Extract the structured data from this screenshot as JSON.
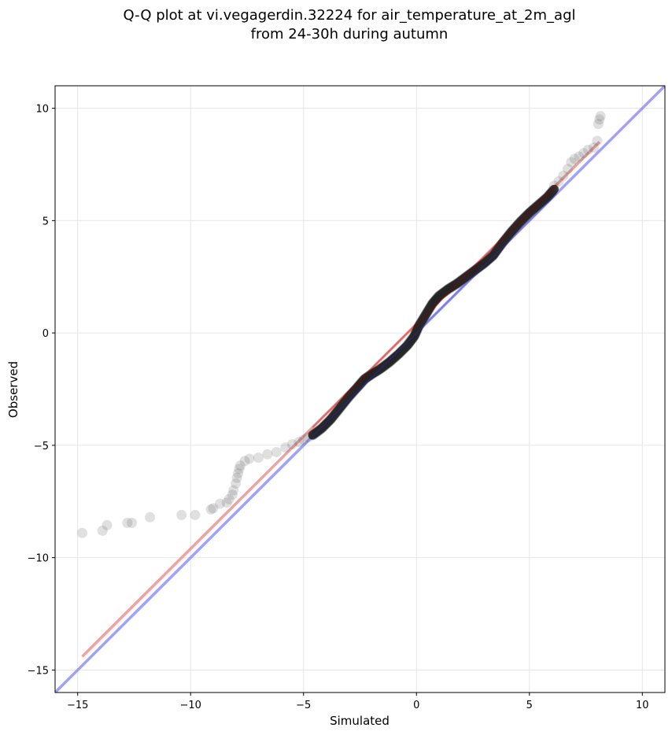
{
  "chart_data": {
    "type": "scatter",
    "title": "Q-Q plot at vi.vegagerdin.32224 for air_temperature_at_2m_agl",
    "subtitle": "from 24-30h during autumn",
    "xlabel": "Simulated",
    "ylabel": "Observed",
    "xlim": [
      -16,
      11
    ],
    "ylim": [
      -16,
      11
    ],
    "xticks": [
      -15,
      -10,
      -5,
      0,
      5,
      10
    ],
    "yticks": [
      -15,
      -10,
      -5,
      0,
      5,
      10
    ],
    "xtick_labels": [
      "−15",
      "−10",
      "−5",
      "0",
      "5",
      "10"
    ],
    "ytick_labels": [
      "−15",
      "−10",
      "−5",
      "0",
      "5",
      "10"
    ],
    "grid": true,
    "legend": "none",
    "tail_points": [
      [
        -14.8,
        -8.9
      ],
      [
        -13.9,
        -8.8
      ],
      [
        -13.7,
        -8.55
      ],
      [
        -12.8,
        -8.45
      ],
      [
        -12.6,
        -8.45
      ],
      [
        -11.8,
        -8.2
      ],
      [
        -10.4,
        -8.1
      ],
      [
        -9.8,
        -8.1
      ],
      [
        -9.1,
        -7.85
      ],
      [
        -9.0,
        -7.8
      ],
      [
        -8.7,
        -7.6
      ],
      [
        -8.4,
        -7.55
      ],
      [
        -8.3,
        -7.4
      ],
      [
        -8.15,
        -7.2
      ],
      [
        -8.1,
        -7.0
      ],
      [
        -8.0,
        -6.7
      ],
      [
        -7.95,
        -6.45
      ],
      [
        -7.9,
        -6.25
      ],
      [
        -7.85,
        -6.05
      ],
      [
        -7.8,
        -5.9
      ],
      [
        -7.6,
        -5.7
      ],
      [
        -7.4,
        -5.6
      ],
      [
        -7.0,
        -5.55
      ],
      [
        -6.6,
        -5.4
      ],
      [
        -6.2,
        -5.3
      ],
      [
        -5.8,
        -5.1
      ],
      [
        -5.5,
        -4.95
      ],
      [
        -5.2,
        -4.85
      ],
      [
        -5.0,
        -4.75
      ],
      [
        -4.8,
        -4.65
      ],
      [
        -4.6,
        -4.55
      ],
      [
        6.1,
        6.55
      ],
      [
        6.3,
        6.75
      ],
      [
        6.5,
        7.0
      ],
      [
        6.7,
        7.3
      ],
      [
        6.85,
        7.6
      ],
      [
        7.0,
        7.75
      ],
      [
        7.2,
        7.85
      ],
      [
        7.4,
        8.0
      ],
      [
        7.6,
        8.15
      ],
      [
        7.85,
        8.25
      ],
      [
        8.0,
        8.55
      ],
      [
        8.05,
        9.3
      ],
      [
        8.1,
        9.5
      ],
      [
        8.15,
        9.65
      ]
    ],
    "bulk_curve": [
      [
        -4.6,
        -4.55
      ],
      [
        -4.2,
        -4.25
      ],
      [
        -3.8,
        -3.85
      ],
      [
        -3.4,
        -3.35
      ],
      [
        -3.0,
        -2.85
      ],
      [
        -2.6,
        -2.4
      ],
      [
        -2.3,
        -2.05
      ],
      [
        -2.0,
        -1.85
      ],
      [
        -1.6,
        -1.6
      ],
      [
        -1.2,
        -1.3
      ],
      [
        -0.8,
        -0.95
      ],
      [
        -0.4,
        -0.55
      ],
      [
        -0.1,
        -0.15
      ],
      [
        0.1,
        0.3
      ],
      [
        0.4,
        0.8
      ],
      [
        0.7,
        1.3
      ],
      [
        1.0,
        1.65
      ],
      [
        1.4,
        1.95
      ],
      [
        1.8,
        2.2
      ],
      [
        2.2,
        2.5
      ],
      [
        2.6,
        2.8
      ],
      [
        3.0,
        3.1
      ],
      [
        3.4,
        3.45
      ],
      [
        3.8,
        4.0
      ],
      [
        4.2,
        4.5
      ],
      [
        4.6,
        4.95
      ],
      [
        5.0,
        5.35
      ],
      [
        5.4,
        5.7
      ],
      [
        5.8,
        6.05
      ],
      [
        6.1,
        6.4
      ]
    ],
    "fit_line": {
      "x": [
        -14.8,
        8.1
      ],
      "y": [
        -14.4,
        8.5
      ],
      "color": "#f08080"
    },
    "identity_line": {
      "x": [
        -16,
        11
      ],
      "y": [
        -16,
        11
      ],
      "color": "#8080ff"
    },
    "point_color": "#555555"
  }
}
